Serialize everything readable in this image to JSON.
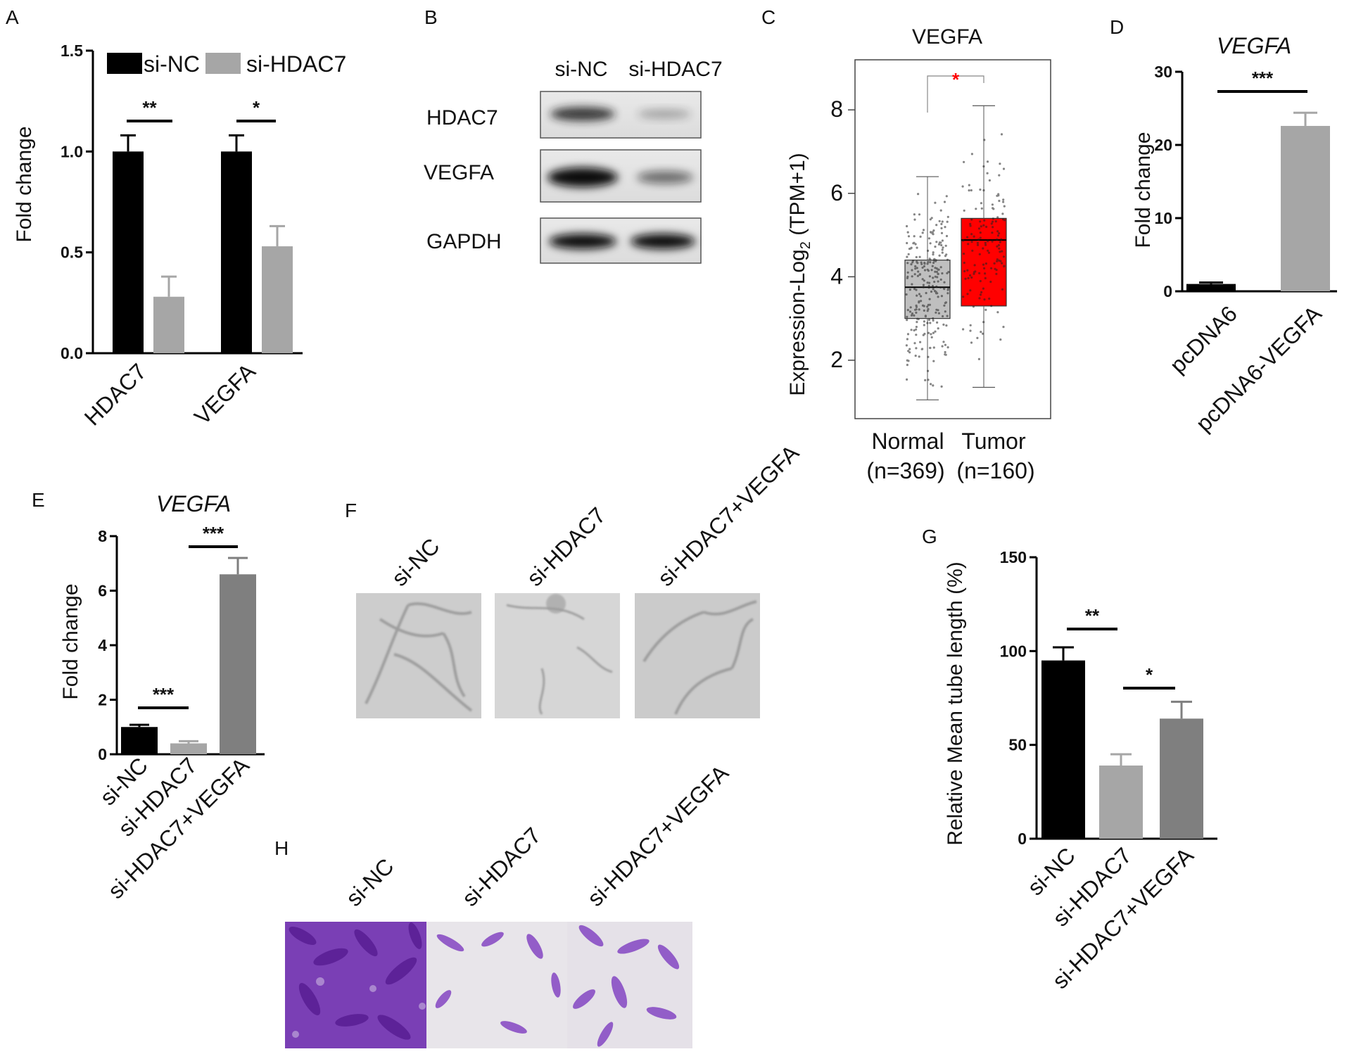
{
  "panels": {
    "A": "A",
    "B": "B",
    "C": "C",
    "D": "D",
    "E": "E",
    "F": "F",
    "G": "G",
    "H": "H"
  },
  "chart_data": [
    {
      "panel": "A",
      "type": "bar",
      "categories": [
        "HDAC7",
        "VEGFA"
      ],
      "series": [
        {
          "name": "si-NC",
          "values": [
            1.0,
            1.0
          ],
          "errors": [
            0.08,
            0.08
          ],
          "color": "#000000"
        },
        {
          "name": "si-HDAC7",
          "values": [
            0.28,
            0.53
          ],
          "errors": [
            0.1,
            0.1
          ],
          "color": "#a6a6a6"
        }
      ],
      "ylabel": "Fold change",
      "ylim": [
        0,
        1.5
      ],
      "yticks": [
        "0.0",
        "0.5",
        "1.0",
        "1.5"
      ],
      "significance": [
        "**",
        "*"
      ],
      "legend": "top"
    },
    {
      "panel": "C",
      "type": "box",
      "title": "VEGFA",
      "ylabel_main": "Expression-Log",
      "ylabel_sub": "2",
      "ylabel_tail": " (TPM+1)",
      "yticks": [
        "2",
        "4",
        "6",
        "8"
      ],
      "ylim": [
        0.6,
        9.2
      ],
      "groups": [
        {
          "label": "Normal",
          "n": "(n=369)",
          "q1": 3.0,
          "median": 3.75,
          "q3": 4.4,
          "min": 1.05,
          "max": 6.4,
          "color": "#bfbfbf"
        },
        {
          "label": "Tumor",
          "n": "(n=160)",
          "q1": 3.3,
          "median": 4.88,
          "q3": 5.4,
          "min": 1.35,
          "max": 8.1,
          "color": "#ff0000"
        }
      ],
      "significance": "*"
    },
    {
      "panel": "D",
      "type": "bar",
      "title": "VEGFA",
      "categories": [
        "pcDNA6",
        "pcDNA6-VEGFA"
      ],
      "values": [
        1.0,
        22.6
      ],
      "errors": [
        0.2,
        1.8
      ],
      "colors": [
        "#000000",
        "#a6a6a6"
      ],
      "ylabel": "Fold change",
      "ylim": [
        0,
        30
      ],
      "yticks": [
        "0",
        "10",
        "20",
        "30"
      ],
      "significance": "***"
    },
    {
      "panel": "E",
      "type": "bar",
      "title": "VEGFA",
      "categories": [
        "si-NC",
        "si-HDAC7",
        "si-HDAC7+VEGFA"
      ],
      "values": [
        1.0,
        0.4,
        6.6
      ],
      "errors": [
        0.08,
        0.08,
        0.6
      ],
      "colors": [
        "#000000",
        "#a6a6a6",
        "#7f7f7f"
      ],
      "ylabel": "Fold change",
      "ylim": [
        0,
        8
      ],
      "yticks": [
        "0",
        "2",
        "4",
        "6",
        "8"
      ],
      "significance": [
        "***",
        "***"
      ]
    },
    {
      "panel": "G",
      "type": "bar",
      "categories": [
        "si-NC",
        "si-HDAC7",
        "si-HDAC7+VEGFA"
      ],
      "values": [
        95,
        39,
        64
      ],
      "errors": [
        7,
        6,
        9
      ],
      "colors": [
        "#000000",
        "#a6a6a6",
        "#7f7f7f"
      ],
      "ylabel": "Relative Mean tube length (%)",
      "ylim": [
        0,
        150
      ],
      "yticks": [
        "0",
        "50",
        "100",
        "150"
      ],
      "significance": [
        "**",
        "*"
      ]
    }
  ],
  "western_blot": {
    "columns": [
      "si-NC",
      "si-HDAC7"
    ],
    "rows": [
      {
        "label": "HDAC7",
        "intensity": [
          0.85,
          0.3
        ]
      },
      {
        "label": "VEGFA",
        "intensity": [
          1.0,
          0.55
        ]
      },
      {
        "label": "GAPDH",
        "intensity": [
          1.0,
          1.0
        ]
      }
    ]
  },
  "tube_images": {
    "labels": [
      "si-NC",
      "si-HDAC7",
      "si-HDAC7+VEGFA"
    ]
  },
  "transwell_images": {
    "labels": [
      "si-NC",
      "si-HDAC7",
      "si-HDAC7+VEGFA"
    ]
  }
}
